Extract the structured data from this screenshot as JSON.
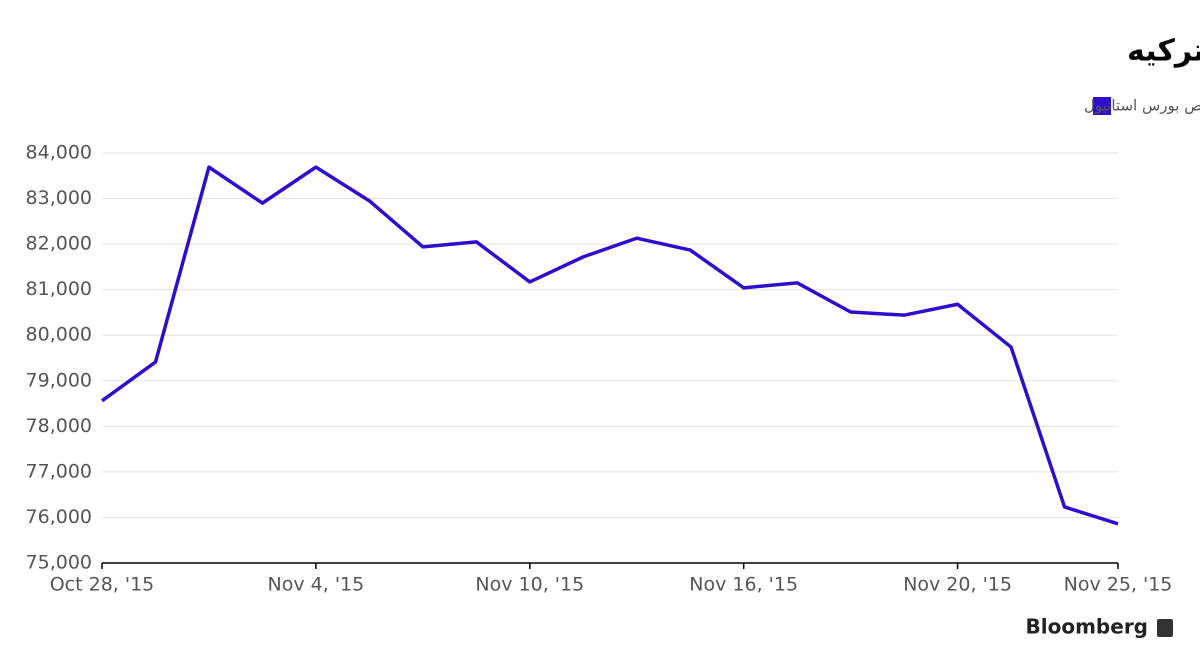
{
  "chart_data": {
    "type": "line",
    "title": "نوسان بازار سهام ترکیه",
    "source": "Bloomberg",
    "categories": [
      "Oct 28, '15",
      null,
      null,
      null,
      "Nov 4, '15",
      null,
      null,
      null,
      "Nov 10, '15",
      null,
      null,
      null,
      "Nov 16, '15",
      null,
      null,
      null,
      "Nov 20, '15",
      null,
      null,
      "Nov 25, '15"
    ],
    "series": [
      {
        "name": "شاخص بورس استانبول",
        "color": "#2b0fcc",
        "values": [
          78560,
          79410,
          83690,
          82900,
          83690,
          82950,
          81940,
          82050,
          81170,
          81720,
          82130,
          81870,
          81040,
          81150,
          80510,
          80440,
          80680,
          79740,
          76230,
          75860
        ]
      }
    ],
    "ylim": [
      75000,
      84000
    ],
    "yticks": [
      {
        "value": 75000,
        "label": "75,000"
      },
      {
        "value": 76000,
        "label": "76,000"
      },
      {
        "value": 77000,
        "label": "77,000"
      },
      {
        "value": 78000,
        "label": "78,000"
      },
      {
        "value": 79000,
        "label": "79,000"
      },
      {
        "value": 80000,
        "label": "80,000"
      },
      {
        "value": 81000,
        "label": "81,000"
      },
      {
        "value": 82000,
        "label": "82,000"
      },
      {
        "value": 83000,
        "label": "83,000"
      },
      {
        "value": 84000,
        "label": "84,000"
      }
    ],
    "grid": true,
    "legend": "top-right"
  }
}
